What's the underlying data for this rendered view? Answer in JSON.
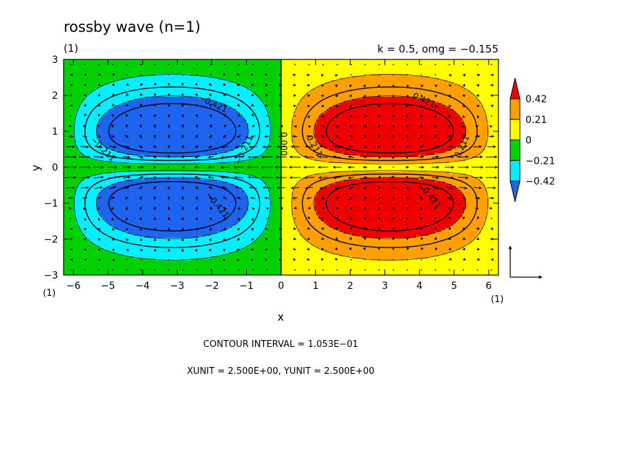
{
  "title": "rossby wave (n=1)",
  "panel_label": "(1)",
  "params": "k = 0.5, omg = −0.155",
  "x_unit_label": "(1)",
  "y_unit_label": "(1)",
  "footer": {
    "contour_interval": "CONTOUR INTERVAL = 1.053E−01",
    "units": "XUNIT = 2.500E+00, YUNIT = 2.500E+00"
  },
  "colors": {
    "blue": "#1e64f0",
    "cyan": "#00f0ff",
    "green": "#00d200",
    "yellow": "#ffff00",
    "orange": "#ffa000",
    "red": "#f00000"
  },
  "chart_data": {
    "type": "heatmap",
    "title": "rossby wave (n=1)",
    "subtitle": "k = 0.5, omg = −0.155",
    "xlabel": "x",
    "ylabel": "y",
    "xlim": [
      -6.283,
      6.283
    ],
    "ylim": [
      -3,
      3
    ],
    "xticks": [
      -6,
      -5,
      -4,
      -3,
      -2,
      -1,
      0,
      1,
      2,
      3,
      4,
      5,
      6
    ],
    "yticks": [
      -3,
      -2,
      -1,
      0,
      1,
      2,
      3
    ],
    "xtick_labels": [
      "−6",
      "−5",
      "−4",
      "−3",
      "−2",
      "−1",
      "0",
      "1",
      "2",
      "3",
      "4",
      "5",
      "6"
    ],
    "ytick_labels": [
      "−3",
      "−2",
      "−1",
      "0",
      "1",
      "2",
      "3"
    ],
    "field": {
      "description": "sin(k x) * 2 |y| exp(-y^2/2)",
      "k": 0.5,
      "omega": -0.155,
      "max": 0.421,
      "min": -0.421
    },
    "contour_interval": 0.1053,
    "contour_labels": [
      {
        "text": "−0.421",
        "x": -2.0,
        "y": 1.7,
        "rotate": 25
      },
      {
        "text": "−0.421",
        "x": -1.9,
        "y": -1.1,
        "rotate": 50
      },
      {
        "text": "−0.211",
        "x": -5.2,
        "y": 0.45,
        "rotate": 45
      },
      {
        "text": "−0.211",
        "x": -1.0,
        "y": 0.45,
        "rotate": -65
      },
      {
        "text": "0.000",
        "x": 0.0,
        "y": 0.65,
        "rotate": 90
      },
      {
        "text": "0.421",
        "x": 4.1,
        "y": 1.8,
        "rotate": 25
      },
      {
        "text": "0.421",
        "x": 4.3,
        "y": -0.9,
        "rotate": 50
      },
      {
        "text": "0.211",
        "x": 0.9,
        "y": 0.55,
        "rotate": 60
      },
      {
        "text": "0.211",
        "x": 5.3,
        "y": 0.55,
        "rotate": -65
      }
    ],
    "colorbar": {
      "levels": [
        "0.42",
        "0.21",
        "0",
        "−0.21",
        "−0.42"
      ],
      "bands": [
        {
          "lo": -0.421,
          "hi": -0.316,
          "color": "#1e64f0"
        },
        {
          "lo": -0.316,
          "hi": -0.105,
          "color": "#00f0ff"
        },
        {
          "lo": -0.105,
          "hi": 0.0,
          "color": "#00d200"
        },
        {
          "lo": 0.0,
          "hi": 0.105,
          "color": "#ffff00"
        },
        {
          "lo": 0.105,
          "hi": 0.316,
          "color": "#ffa000"
        },
        {
          "lo": 0.316,
          "hi": 0.421,
          "color": "#f00000"
        }
      ]
    },
    "vectors": {
      "description": "velocity arrows; u strong near y=0, v along x",
      "unit_arrow": true
    }
  }
}
